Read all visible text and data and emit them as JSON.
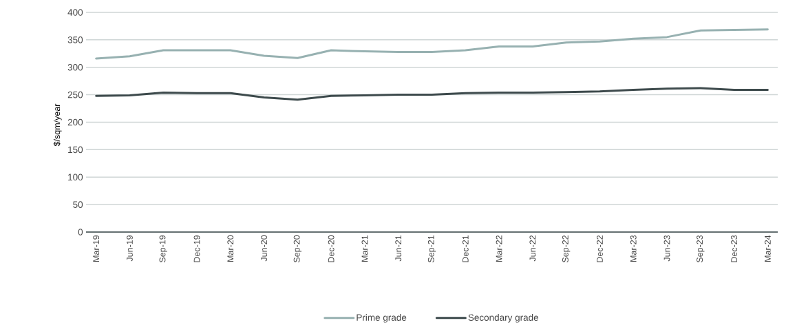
{
  "chart_data": {
    "type": "line",
    "ylabel": "$/sqm/year",
    "categories": [
      "Mar-19",
      "Jun-19",
      "Sep-19",
      "Dec-19",
      "Mar-20",
      "Jun-20",
      "Sep-20",
      "Dec-20",
      "Mar-21",
      "Jun-21",
      "Sep-21",
      "Dec-21",
      "Mar-22",
      "Jun-22",
      "Sep-22",
      "Dec-22",
      "Mar-23",
      "Jun-23",
      "Sep-23",
      "Dec-23",
      "Mar-24"
    ],
    "series": [
      {
        "name": "Prime grade",
        "color": "#97b1b1",
        "values": [
          316,
          320,
          331,
          331,
          331,
          321,
          317,
          331,
          329,
          328,
          328,
          331,
          338,
          338,
          345,
          347,
          352,
          355,
          367,
          368,
          369
        ]
      },
      {
        "name": "Secondary grade",
        "color": "#3d4a4c",
        "values": [
          248,
          249,
          254,
          253,
          253,
          245,
          241,
          248,
          249,
          250,
          250,
          253,
          254,
          254,
          255,
          256,
          259,
          261,
          262,
          259,
          259
        ]
      }
    ],
    "ylim": [
      0,
      400
    ],
    "yticks": [
      0,
      50,
      100,
      150,
      200,
      250,
      300,
      350,
      400
    ],
    "grid": "y",
    "legend": "bottom",
    "marker": "none",
    "line_style": "solid"
  }
}
